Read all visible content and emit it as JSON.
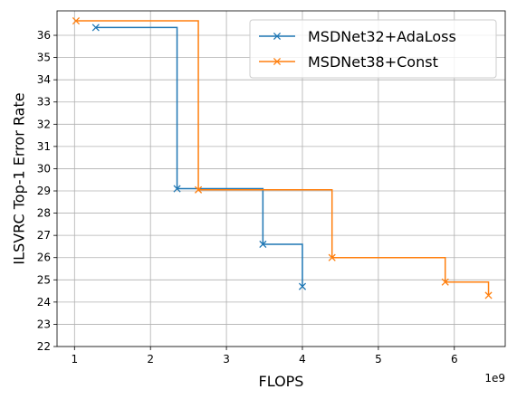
{
  "chart_data": {
    "type": "line",
    "drawstyle": "steps-post",
    "xlabel": "FLOPS",
    "ylabel": "ILSVRC Top-1 Error Rate",
    "x_offset_label": "1e9",
    "xlim": [
      0.77,
      6.67
    ],
    "ylim": [
      22,
      37.1
    ],
    "xticks": [
      1,
      2,
      3,
      4,
      5,
      6
    ],
    "yticks": [
      22,
      23,
      24,
      25,
      26,
      27,
      28,
      29,
      30,
      31,
      32,
      33,
      34,
      35,
      36
    ],
    "grid": true,
    "legend_position": "top-right",
    "series": [
      {
        "name": "MSDNet32+AdaLoss",
        "color": "#1f77b4",
        "marker": "x",
        "x": [
          1.28,
          2.35,
          3.48,
          4.0
        ],
        "y": [
          36.35,
          29.1,
          26.6,
          24.7
        ]
      },
      {
        "name": "MSDNet38+Const",
        "color": "#ff7f0e",
        "marker": "x",
        "x": [
          1.02,
          2.63,
          4.39,
          5.88,
          6.45
        ],
        "y": [
          36.65,
          29.05,
          26.0,
          24.9,
          24.3
        ]
      }
    ]
  }
}
